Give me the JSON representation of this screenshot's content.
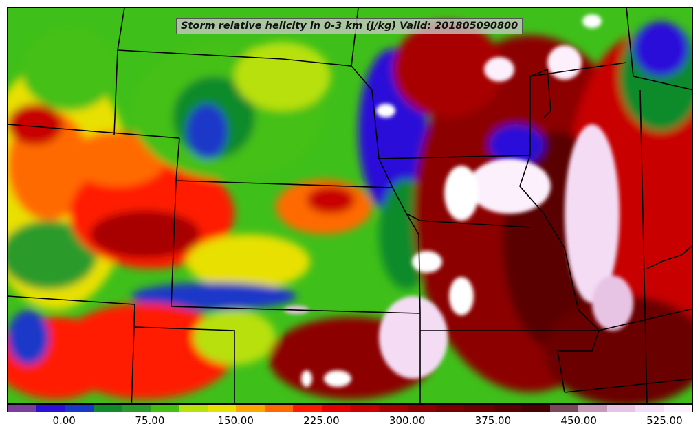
{
  "title": "Storm relative helicity in 0-3 km (J/kg) Valid: 201805090800",
  "colorbar": {
    "colors": [
      "#7a3f9d",
      "#2a10d8",
      "#1a38c8",
      "#108a2a",
      "#2a9b2a",
      "#45c012",
      "#b8e00a",
      "#e8e000",
      "#ffa500",
      "#ff6a00",
      "#ff1a00",
      "#e60000",
      "#c80000",
      "#a80000",
      "#8c0000",
      "#780000",
      "#6a0000",
      "#5a0000",
      "#4a0000",
      "#7a4a5a",
      "#c898b8",
      "#e8c4e4",
      "#f4dcf4",
      "#fcf0fc"
    ],
    "tick_labels": [
      "0.00",
      "75.00",
      "150.00",
      "225.00",
      "300.00",
      "375.00",
      "450.00",
      "525.00"
    ],
    "tick_positions": [
      2,
      5,
      8,
      11,
      14,
      17,
      20,
      23
    ]
  }
}
